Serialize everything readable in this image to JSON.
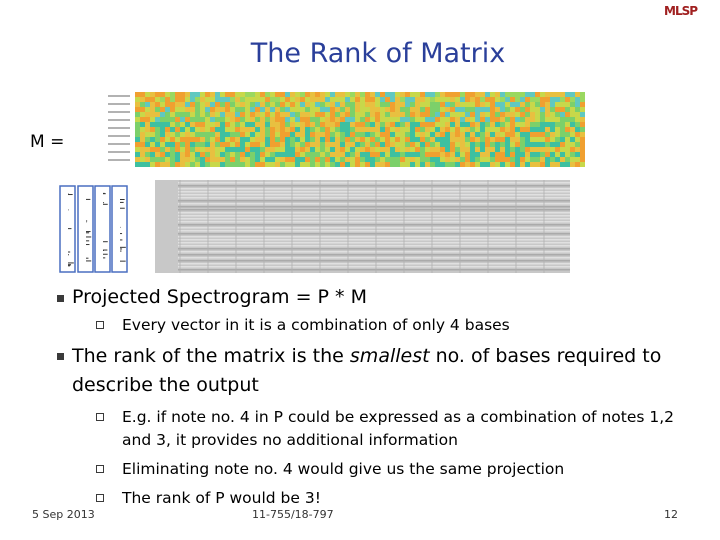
{
  "logo": "MLSP",
  "title": "The Rank of Matrix",
  "matrix_label": "M =",
  "bullets": [
    {
      "text": [
        "Projected Spectrogram = P * M"
      ],
      "sub": [
        "Every vector in it is a combination of only 4 bases"
      ]
    },
    {
      "text": [
        "The rank of the matrix is the ",
        "smallest",
        " no. of bases required to describe the output"
      ],
      "sub": [
        "E.g. if note no. 4 in P could be expressed as a combination of notes 1,2 and 3, it provides no additional information",
        "Eliminating note no. 4 would give us the same projection",
        "The rank of P would be 3!"
      ]
    }
  ],
  "footer": {
    "date": "5 Sep 2013",
    "course": "11-755/18-797",
    "page": "12"
  }
}
